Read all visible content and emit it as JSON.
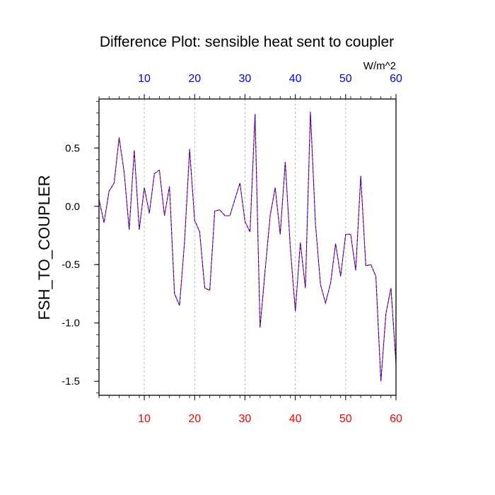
{
  "chart_data": {
    "type": "line",
    "title": "Difference Plot: sensible heat sent to coupler",
    "ylabel": "FSH_TO_COUPLER",
    "xlabel": "",
    "units": "W/m^2",
    "xlim": [
      1,
      60
    ],
    "ylim": [
      -1.62,
      0.92
    ],
    "grid": "vertical dashed lines at x ticks",
    "x_ticks": [
      "10",
      "20",
      "30",
      "40",
      "50",
      "60"
    ],
    "y_ticks": [
      "0.5",
      "0.0",
      "-0.5",
      "-1.0",
      "-1.5"
    ],
    "colors": {
      "bottom_tick_labels": "#ff0000",
      "top_tick_labels": "#0000ff",
      "line_solid": "#ff0000",
      "line_dashed": "#0000ff"
    },
    "series": [
      {
        "x": [
          1,
          2,
          3,
          4,
          5,
          6,
          7,
          8,
          9,
          10,
          11,
          12,
          13,
          14,
          15,
          16,
          17,
          18,
          19,
          20,
          21,
          22,
          23,
          24,
          25,
          26,
          27,
          28,
          29,
          30,
          31,
          32,
          33,
          34,
          35,
          36,
          37,
          38,
          39,
          40,
          41,
          42,
          43,
          44,
          45,
          46,
          47,
          48,
          49,
          50,
          51,
          52,
          53,
          54,
          55,
          56,
          57,
          58,
          59,
          60
        ],
        "values": [
          0.06,
          -0.14,
          0.13,
          0.2,
          0.59,
          0.29,
          -0.2,
          0.48,
          -0.2,
          0.16,
          -0.06,
          0.28,
          0.31,
          -0.08,
          0.17,
          -0.75,
          -0.85,
          -0.3,
          0.49,
          -0.12,
          -0.22,
          -0.7,
          -0.72,
          -0.04,
          -0.03,
          -0.08,
          -0.08,
          0.06,
          0.2,
          -0.13,
          -0.22,
          0.79,
          -1.04,
          -0.55,
          -0.08,
          0.16,
          -0.24,
          0.38,
          -0.35,
          -0.9,
          -0.31,
          -0.7,
          0.81,
          -0.15,
          -0.67,
          -0.83,
          -0.66,
          -0.32,
          -0.6,
          -0.24,
          -0.24,
          -0.55,
          0.26,
          -0.51,
          -0.5,
          -0.6,
          -1.5,
          -0.92,
          -0.7,
          -1.35
        ]
      },
      {
        "x": [
          1,
          2,
          3,
          4,
          5,
          6,
          7,
          8,
          9,
          10,
          11,
          12,
          13,
          14,
          15,
          16,
          17,
          18,
          19,
          20,
          21,
          22,
          23,
          24,
          25,
          26,
          27,
          28,
          29,
          30,
          31,
          32,
          33,
          34,
          35,
          36,
          37,
          38,
          39,
          40,
          41,
          42,
          43,
          44,
          45,
          46,
          47,
          48,
          49,
          50,
          51,
          52,
          53,
          54,
          55,
          56,
          57,
          58,
          59,
          60
        ],
        "values": [
          0.06,
          -0.14,
          0.13,
          0.2,
          0.59,
          0.29,
          -0.2,
          0.48,
          -0.2,
          0.16,
          -0.06,
          0.28,
          0.31,
          -0.08,
          0.17,
          -0.75,
          -0.85,
          -0.3,
          0.49,
          -0.12,
          -0.22,
          -0.7,
          -0.72,
          -0.04,
          -0.03,
          -0.08,
          -0.08,
          0.06,
          0.2,
          -0.13,
          -0.22,
          0.79,
          -1.04,
          -0.55,
          -0.08,
          0.16,
          -0.24,
          0.38,
          -0.35,
          -0.9,
          -0.31,
          -0.7,
          0.81,
          -0.15,
          -0.67,
          -0.83,
          -0.66,
          -0.32,
          -0.6,
          -0.24,
          -0.24,
          -0.55,
          0.26,
          -0.51,
          -0.5,
          -0.6,
          -1.5,
          -0.92,
          -0.7,
          -1.35
        ]
      }
    ]
  }
}
